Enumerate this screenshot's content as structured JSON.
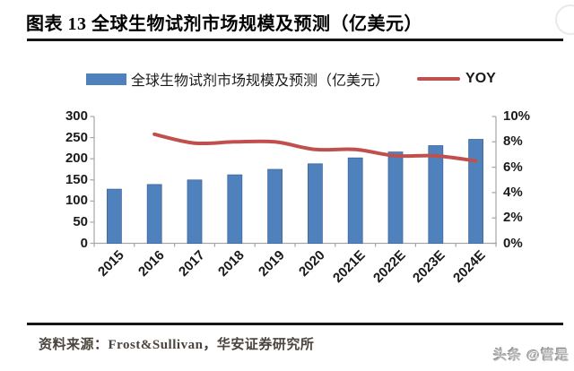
{
  "page": {
    "title": "图表 13  全球生物试剂市场规模及预测（亿美元）",
    "source": "资料来源：Frost&Sullivan，华安证券研究所",
    "watermark": "头条 @管是"
  },
  "legend": {
    "bar_label": "全球生物试剂市场规模及预测（亿美元）",
    "line_label": "YOY"
  },
  "colors": {
    "bar": "#4f81bd",
    "bar_border": "#41679e",
    "line": "#c0504d",
    "axis": "#a6a6a6",
    "rule": "#161616",
    "source_text": "#4a443c",
    "watermark_text": "#b5b5b5"
  },
  "chart_data": {
    "type": "bar+line combo",
    "title": "全球生物试剂市场规模及预测（亿美元）",
    "categories": [
      "2015",
      "2016",
      "2017",
      "2018",
      "2019",
      "2020",
      "2021E",
      "2022E",
      "2023E",
      "2024E"
    ],
    "series": [
      {
        "name": "全球生物试剂市场规模及预测（亿美元）",
        "type": "bar",
        "axis": "left",
        "values": [
          128,
          139,
          150,
          162,
          175,
          188,
          202,
          216,
          231,
          246
        ]
      },
      {
        "name": "YOY",
        "type": "line",
        "axis": "right",
        "unit": "%",
        "values": [
          null,
          8.6,
          7.9,
          8.0,
          8.0,
          7.4,
          7.4,
          6.9,
          6.9,
          6.5
        ]
      }
    ],
    "left_axis": {
      "min": 0,
      "max": 300,
      "ticks": [
        300,
        250,
        200,
        150,
        100,
        50,
        0
      ]
    },
    "right_axis": {
      "min": 0,
      "max": 10,
      "tick_labels": [
        "10%",
        "8%",
        "6%",
        "4%",
        "2%",
        "0%"
      ]
    },
    "grid": false,
    "legend_position": "top"
  }
}
